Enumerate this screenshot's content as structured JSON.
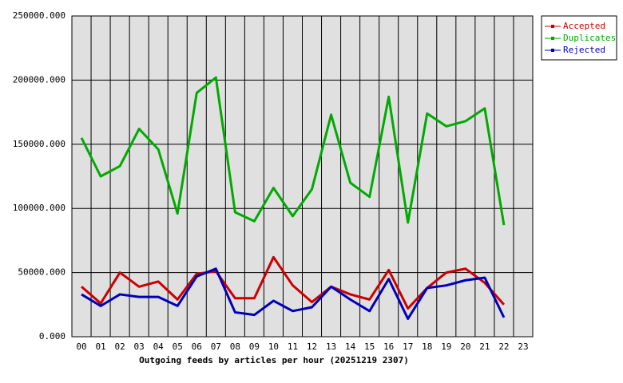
{
  "chart_data": {
    "type": "line",
    "title": "Outgoing feeds by articles per hour (20251219 2307)",
    "categories": [
      "00",
      "01",
      "02",
      "03",
      "04",
      "05",
      "06",
      "07",
      "08",
      "09",
      "10",
      "11",
      "12",
      "13",
      "14",
      "15",
      "16",
      "17",
      "18",
      "19",
      "20",
      "21",
      "22",
      "23"
    ],
    "series": [
      {
        "name": "Accepted",
        "color": "#cc0000",
        "values": [
          39000,
          26000,
          50000,
          39000,
          43000,
          29000,
          49000,
          51000,
          30000,
          30000,
          62000,
          40000,
          27000,
          39000,
          33000,
          29000,
          52000,
          22000,
          38000,
          50000,
          53000,
          42000,
          25000,
          null
        ]
      },
      {
        "name": "Duplicates",
        "color": "#00aa00",
        "values": [
          155000,
          125000,
          133000,
          162000,
          146000,
          96000,
          190000,
          202000,
          97000,
          90000,
          116000,
          94000,
          115000,
          173000,
          120000,
          109000,
          187000,
          89000,
          174000,
          164000,
          168000,
          178000,
          87000,
          null
        ]
      },
      {
        "name": "Rejected",
        "color": "#0000bb",
        "values": [
          33000,
          24000,
          33000,
          31000,
          31000,
          24000,
          47000,
          53000,
          19000,
          17000,
          28000,
          20000,
          23000,
          39000,
          29000,
          20000,
          45000,
          14000,
          38000,
          40000,
          44000,
          46000,
          15000,
          null
        ]
      }
    ],
    "ylim": [
      0,
      250000
    ],
    "yticks": [
      {
        "value": 0,
        "label": "0.000"
      },
      {
        "value": 50000,
        "label": "50000.000"
      },
      {
        "value": 100000,
        "label": "100000.000"
      },
      {
        "value": 150000,
        "label": "150000.000"
      },
      {
        "value": 200000,
        "label": "200000.000"
      },
      {
        "value": 250000,
        "label": "250000.000"
      }
    ],
    "grid": true,
    "legend": "outside-right"
  }
}
